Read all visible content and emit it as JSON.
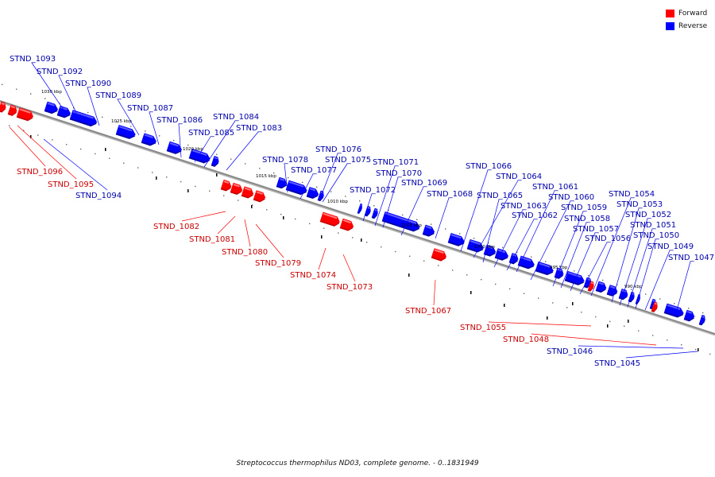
{
  "legend": {
    "forward_label": "Forward",
    "reverse_label": "Reverse",
    "forward_color": "#ff0000",
    "reverse_color": "#0000ff"
  },
  "caption": "Streptococcus thermophilus ND03, complete genome. - 0..1831949",
  "colors": {
    "forward": "#ff0000",
    "forward_dark": "#cc0000",
    "forward_light": "#ff8080",
    "reverse": "#0000ff",
    "reverse_dark": "#0000aa",
    "reverse_light": "#6060ff",
    "backbone": "#888888",
    "forward_label": "#cc0000",
    "reverse_label": "#0000aa"
  },
  "scale_labels": [
    "1030 kbp",
    "1025 kbp",
    "1020 kbp",
    "1015 kbp",
    "1010 kbp",
    "1005 kbp",
    "1000 kbp",
    "995 kbp",
    "990 kbp"
  ],
  "genes_reverse": [
    "STND_1093",
    "STND_1092",
    "STND_1090",
    "STND_1089",
    "STND_1087",
    "STND_1086",
    "STND_1085",
    "STND_1084",
    "STND_1083",
    "STND_1078",
    "STND_1077",
    "STND_1076",
    "STND_1075",
    "STND_1072",
    "STND_1071",
    "STND_1070",
    "STND_1069",
    "STND_1068",
    "STND_1066",
    "STND_1064",
    "STND_1065",
    "STND_1063",
    "STND_1062",
    "STND_1061",
    "STND_1060",
    "STND_1059",
    "STND_1058",
    "STND_1057",
    "STND_1056",
    "STND_1054",
    "STND_1053",
    "STND_1052",
    "STND_1051",
    "STND_1050",
    "STND_1049",
    "STND_1047",
    "STND_1094",
    "STND_1046",
    "STND_1045"
  ],
  "genes_forward": [
    "STND_1096",
    "STND_1095",
    "STND_1082",
    "STND_1081",
    "STND_1080",
    "STND_1079",
    "STND_1074",
    "STND_1073",
    "STND_1067",
    "STND_1055",
    "STND_1048"
  ]
}
